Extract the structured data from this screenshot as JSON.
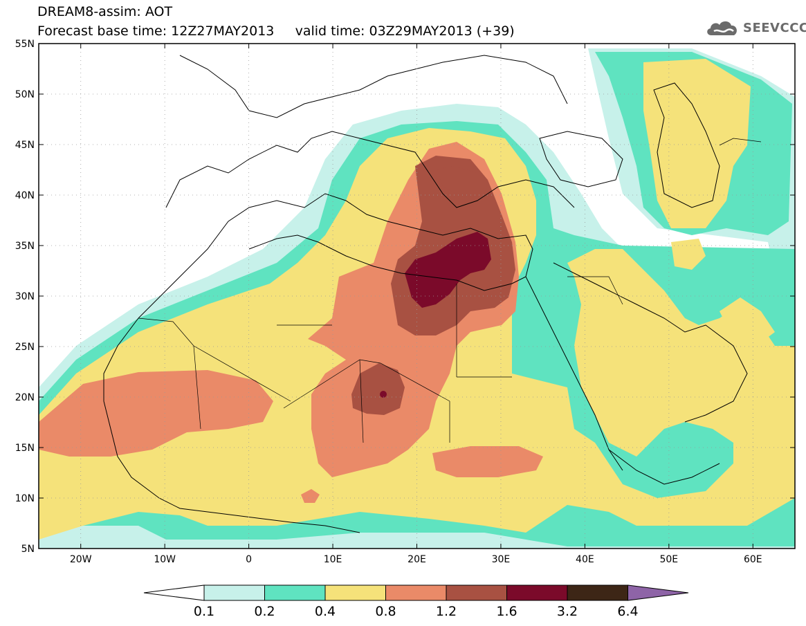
{
  "title": {
    "line1": "DREAM8-assim: AOT",
    "line2": "Forecast base time: 12Z27MAY2013     valid time: 03Z29MAY2013 (+39)"
  },
  "logo": {
    "text": "SEEVCCC",
    "icon": "cloud-icon",
    "color": "#6b6b6b"
  },
  "map": {
    "lon_range": [
      -25,
      65
    ],
    "lat_range": [
      5,
      55
    ],
    "lon_ticks": [
      {
        "v": -20,
        "label": "20W"
      },
      {
        "v": -10,
        "label": "10W"
      },
      {
        "v": 0,
        "label": "0"
      },
      {
        "v": 10,
        "label": "10E"
      },
      {
        "v": 20,
        "label": "20E"
      },
      {
        "v": 30,
        "label": "30E"
      },
      {
        "v": 40,
        "label": "40E"
      },
      {
        "v": 50,
        "label": "50E"
      },
      {
        "v": 60,
        "label": "60E"
      }
    ],
    "lat_ticks": [
      {
        "v": 5,
        "label": "5N"
      },
      {
        "v": 10,
        "label": "10N"
      },
      {
        "v": 15,
        "label": "15N"
      },
      {
        "v": 20,
        "label": "20N"
      },
      {
        "v": 25,
        "label": "25N"
      },
      {
        "v": 30,
        "label": "30N"
      },
      {
        "v": 35,
        "label": "35N"
      },
      {
        "v": 40,
        "label": "40N"
      },
      {
        "v": 45,
        "label": "45N"
      },
      {
        "v": 50,
        "label": "50N"
      },
      {
        "v": 55,
        "label": "55N"
      }
    ]
  },
  "colorbar": {
    "colors": [
      "#c7f1ea",
      "#5fe3c0",
      "#f5e27a",
      "#ea8a68",
      "#a85142",
      "#7b0a2a",
      "#3d2616"
    ],
    "under_color": "#ffffff",
    "over_color": "#8e64a7",
    "labels": [
      "0.1",
      "0.2",
      "0.4",
      "0.8",
      "1.2",
      "1.6",
      "3.2",
      "6.4"
    ]
  }
}
